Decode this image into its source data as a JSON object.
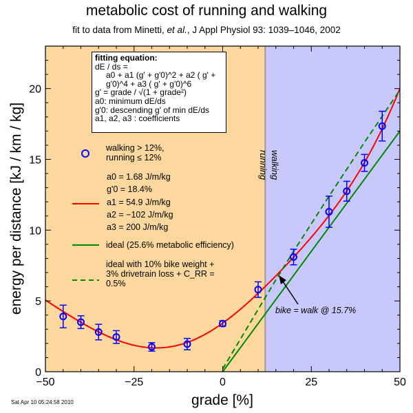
{
  "title": "metabolic cost of running and walking",
  "subtitle_prefix": "fit to data from Minetti, ",
  "subtitle_etal": "et al.",
  "subtitle_suffix": ", J Appl Physiol 93: 1039–1046, 2002",
  "timestamp": "Sat Apr 10 05:24:58 2010",
  "equation_box": {
    "heading": "fitting equation:",
    "line1": "dE / ds =",
    "line2": "a0 + a1 (g' + g'0)^2 + a2 ( g' + g'0)^4 + a3 ( g' + g'0)^6",
    "line3": "g' = grade / √(1 + grade²)",
    "line4": "a0: minimum dE/ds",
    "line5": "g'0: descending g' of min dE/ds",
    "line6": "a1, a2, a3 : coefficients"
  },
  "legend": {
    "markers": "walking > 12%, running ≤ 12%",
    "fit_params": [
      "a0 = 1.68 J/m/kg",
      "g'0 = 18.4%",
      "a1 = 54.9 J/m/kg",
      "a2 = −102 J/m/kg",
      "a3 = 200 J/m/kg"
    ],
    "ideal": "ideal (25.6% metabolic efficiency)",
    "ideal_bike": "ideal with 10% bike weight + 3% drivetrain loss + C_RR = 0.5%"
  },
  "region_labels": {
    "running": "running",
    "walking": "walking"
  },
  "annotation": "bike = walk @ 15.7%",
  "colors": {
    "running_bg": "#fcd79e",
    "walking_bg": "#c8c8fc",
    "fit": "#ff0000",
    "ideal": "#008800",
    "ideal_bike": "#008800",
    "points": "#0000ff",
    "divider": "#999999"
  },
  "chart_data": {
    "type": "scatter",
    "title": "metabolic cost of running and walking",
    "xlabel": "grade [%]",
    "ylabel": "energy per distance [kJ / km / kg]",
    "xlim": [
      -50,
      50
    ],
    "ylim": [
      0,
      23
    ],
    "xticks": [
      -50,
      -25,
      0,
      25,
      50
    ],
    "xtick_labels": [
      "−50",
      "−25",
      "0",
      "25",
      "50"
    ],
    "yticks": [
      0,
      5,
      10,
      15,
      20
    ],
    "ytick_labels": [
      "0",
      "5",
      "10",
      "15",
      "20"
    ],
    "divider_x": 12,
    "crossover_grade": 15.7,
    "series": [
      {
        "name": "walking > 12%, running ≤ 12% (Minetti data)",
        "kind": "points",
        "x": [
          -45,
          -40,
          -35,
          -30,
          -20,
          -10,
          0,
          10,
          20,
          30,
          35,
          40,
          45
        ],
        "y": [
          3.9,
          3.5,
          2.8,
          2.45,
          1.75,
          1.95,
          3.4,
          5.8,
          8.1,
          11.3,
          12.75,
          14.75,
          17.35
        ],
        "err": [
          0.8,
          0.45,
          0.55,
          0.45,
          0.3,
          0.4,
          0.2,
          0.55,
          0.55,
          1.1,
          0.7,
          0.6,
          1.05
        ]
      },
      {
        "name": "fit",
        "kind": "curve",
        "params": {
          "a0": 1.68,
          "g0": 0.184,
          "a1": 54.9,
          "a2": -102,
          "a3": 200
        }
      },
      {
        "name": "ideal (25.6% metabolic efficiency)",
        "kind": "line",
        "x": [
          0,
          50
        ],
        "y": [
          0,
          17
        ]
      },
      {
        "name": "ideal with 10% bike weight + 3% drivetrain loss + C_RR = 0.5%",
        "kind": "dashed-curve",
        "x": [
          0,
          10,
          15.7,
          20,
          30,
          40,
          50
        ],
        "y": [
          0.2,
          4.4,
          6.78,
          8.5,
          12.4,
          16.2,
          19.9
        ]
      }
    ]
  }
}
